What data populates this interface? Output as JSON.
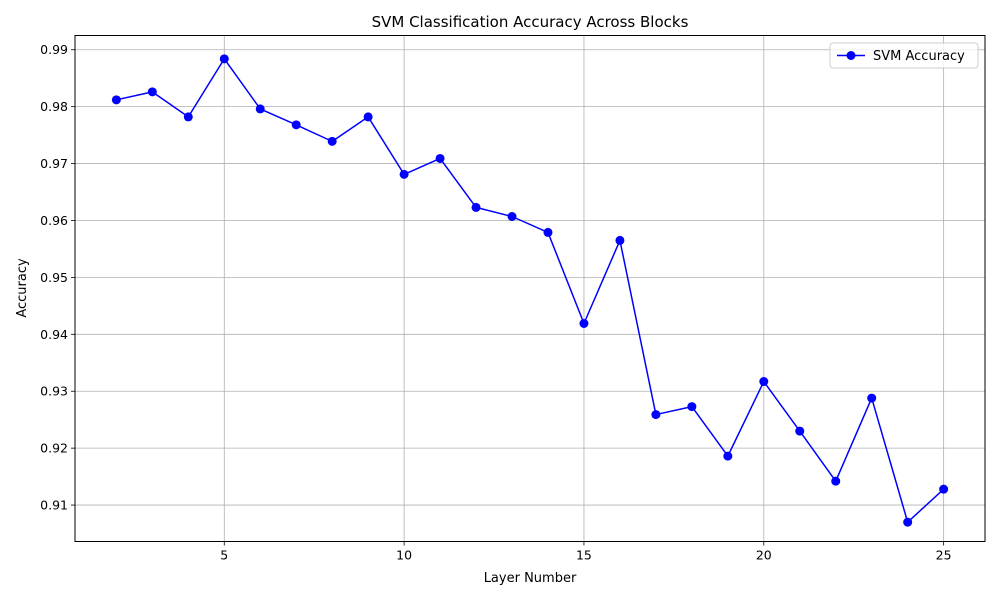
{
  "chart_data": {
    "type": "line",
    "title": "SVM Classification Accuracy Across Blocks",
    "xlabel": "Layer Number",
    "ylabel": "Accuracy",
    "xlim": [
      0.85,
      26.15
    ],
    "ylim": [
      0.9036,
      0.9925
    ],
    "xticks": [
      5,
      10,
      15,
      20,
      25
    ],
    "yticks": [
      0.91,
      0.92,
      0.93,
      0.94,
      0.95,
      0.96,
      0.97,
      0.98,
      0.99
    ],
    "grid": true,
    "legend_position": "top-right",
    "series": [
      {
        "name": "SVM Accuracy",
        "color": "#0000ff",
        "marker": "circle",
        "x": [
          2,
          3,
          4,
          5,
          6,
          7,
          8,
          9,
          10,
          11,
          12,
          13,
          14,
          15,
          16,
          17,
          18,
          19,
          20,
          21,
          22,
          23,
          24,
          25
        ],
        "values": [
          0.9812,
          0.9826,
          0.9782,
          0.9884,
          0.9796,
          0.9768,
          0.9739,
          0.9782,
          0.9681,
          0.9709,
          0.9623,
          0.9607,
          0.9579,
          0.9419,
          0.9565,
          0.9259,
          0.9273,
          0.9186,
          0.9317,
          0.923,
          0.9142,
          0.9288,
          0.907,
          0.9128
        ]
      }
    ]
  }
}
